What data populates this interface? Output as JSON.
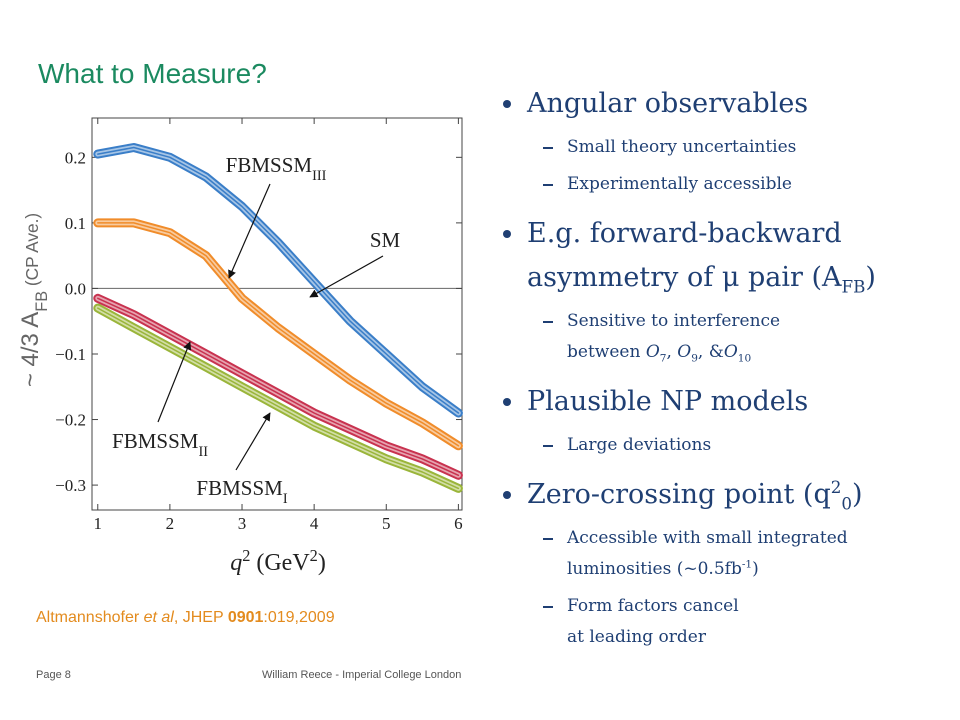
{
  "title": "What to Measure?",
  "chart_data": {
    "type": "line",
    "x": [
      1,
      1.5,
      2,
      2.5,
      3,
      3.5,
      4,
      4.5,
      5,
      5.5,
      6
    ],
    "series": [
      {
        "name": "SM",
        "sub": "",
        "color": "#3a7ec8",
        "values": [
          0.205,
          0.215,
          0.2,
          0.17,
          0.125,
          0.07,
          0.01,
          -0.05,
          -0.1,
          -0.15,
          -0.19
        ]
      },
      {
        "name": "FBMSSM",
        "sub": "III",
        "color": "#f08c2a",
        "values": [
          0.1,
          0.1,
          0.085,
          0.05,
          -0.015,
          -0.06,
          -0.1,
          -0.14,
          -0.175,
          -0.205,
          -0.24
        ]
      },
      {
        "name": "FBMSSM",
        "sub": "II",
        "color": "#c8324f",
        "values": [
          -0.015,
          -0.04,
          -0.07,
          -0.1,
          -0.13,
          -0.16,
          -0.19,
          -0.215,
          -0.24,
          -0.26,
          -0.285
        ]
      },
      {
        "name": "FBMSSM",
        "sub": "I",
        "color": "#9ab53a",
        "values": [
          -0.03,
          -0.06,
          -0.09,
          -0.12,
          -0.15,
          -0.18,
          -0.21,
          -0.235,
          -0.26,
          -0.28,
          -0.305
        ]
      }
    ],
    "xlim": [
      0.92,
      6.05
    ],
    "ylim": [
      -0.338,
      0.26
    ],
    "xticks": [
      1,
      2,
      3,
      4,
      5,
      6
    ],
    "yticks": [
      0.2,
      0.1,
      {
        "value": 0,
        "label": "0.0"
      },
      {
        "value": -0.1,
        "label": "−0.1"
      },
      {
        "value": -0.2,
        "label": "−0.2"
      },
      {
        "value": -0.3,
        "label": "−0.3"
      }
    ],
    "xlabel": [
      {
        "t": "q",
        "s": "i"
      },
      {
        "t": "2",
        "s": "sup"
      },
      {
        "t": " (GeV"
      },
      {
        "t": "2",
        "s": "sup"
      },
      {
        "t": ")"
      }
    ],
    "ylabel": [
      {
        "t": "~ 4/3 A"
      },
      {
        "t": "FB",
        "s": "sub"
      },
      {
        "t": " (CP Ave.)",
        "s": "small"
      }
    ]
  },
  "bullets": [
    {
      "lines": [
        [
          {
            "t": "Angular observables"
          }
        ]
      ],
      "sub": [
        {
          "lines": [
            [
              {
                "t": "Small theory uncertainties"
              }
            ]
          ]
        },
        {
          "lines": [
            [
              {
                "t": "Experimentally accessible"
              }
            ]
          ]
        }
      ]
    },
    {
      "lines": [
        [
          {
            "t": "E.g. forward-backward"
          }
        ],
        [
          {
            "t": "asymmetry of μ pair (A"
          },
          {
            "t": "FB",
            "s": "sub"
          },
          {
            "t": ")"
          }
        ]
      ],
      "sub": [
        {
          "lines": [
            [
              {
                "t": "Sensitive to interference"
              }
            ],
            [
              {
                "t": "between "
              },
              {
                "t": "O",
                "s": "i"
              },
              {
                "t": "7",
                "s": "sub"
              },
              {
                "t": ", "
              },
              {
                "t": "O",
                "s": "i"
              },
              {
                "t": "9",
                "s": "sub"
              },
              {
                "t": ", &"
              },
              {
                "t": "O",
                "s": "i"
              },
              {
                "t": "10",
                "s": "sub"
              }
            ]
          ]
        }
      ]
    },
    {
      "lines": [
        [
          {
            "t": "Plausible NP models"
          }
        ]
      ],
      "sub": [
        {
          "lines": [
            [
              {
                "t": "Large deviations"
              }
            ]
          ]
        }
      ]
    },
    {
      "lines": [
        [
          {
            "t": "Zero-crossing point (q"
          },
          {
            "t": "2",
            "s": "sup"
          },
          {
            "t": "0",
            "s": "sub"
          },
          {
            "t": ")"
          }
        ]
      ],
      "sub": [
        {
          "lines": [
            [
              {
                "t": "Accessible with small integrated"
              }
            ],
            [
              {
                "t": "luminosities (~0.5fb"
              },
              {
                "t": "-1",
                "s": "sup"
              },
              {
                "t": ")"
              }
            ]
          ]
        },
        {
          "lines": [
            [
              {
                "t": "Form factors cancel"
              }
            ],
            [
              {
                "t": "at leading order"
              }
            ]
          ]
        }
      ]
    }
  ],
  "citation": [
    {
      "t": "Altmannshofer "
    },
    {
      "t": "et al",
      "s": "i"
    },
    {
      "t": ", JHEP "
    },
    {
      "t": "0901",
      "s": "b"
    },
    {
      "t": ":019,2009"
    }
  ],
  "footer": {
    "page": "Page 8",
    "author": "William Reece - Imperial College London"
  }
}
